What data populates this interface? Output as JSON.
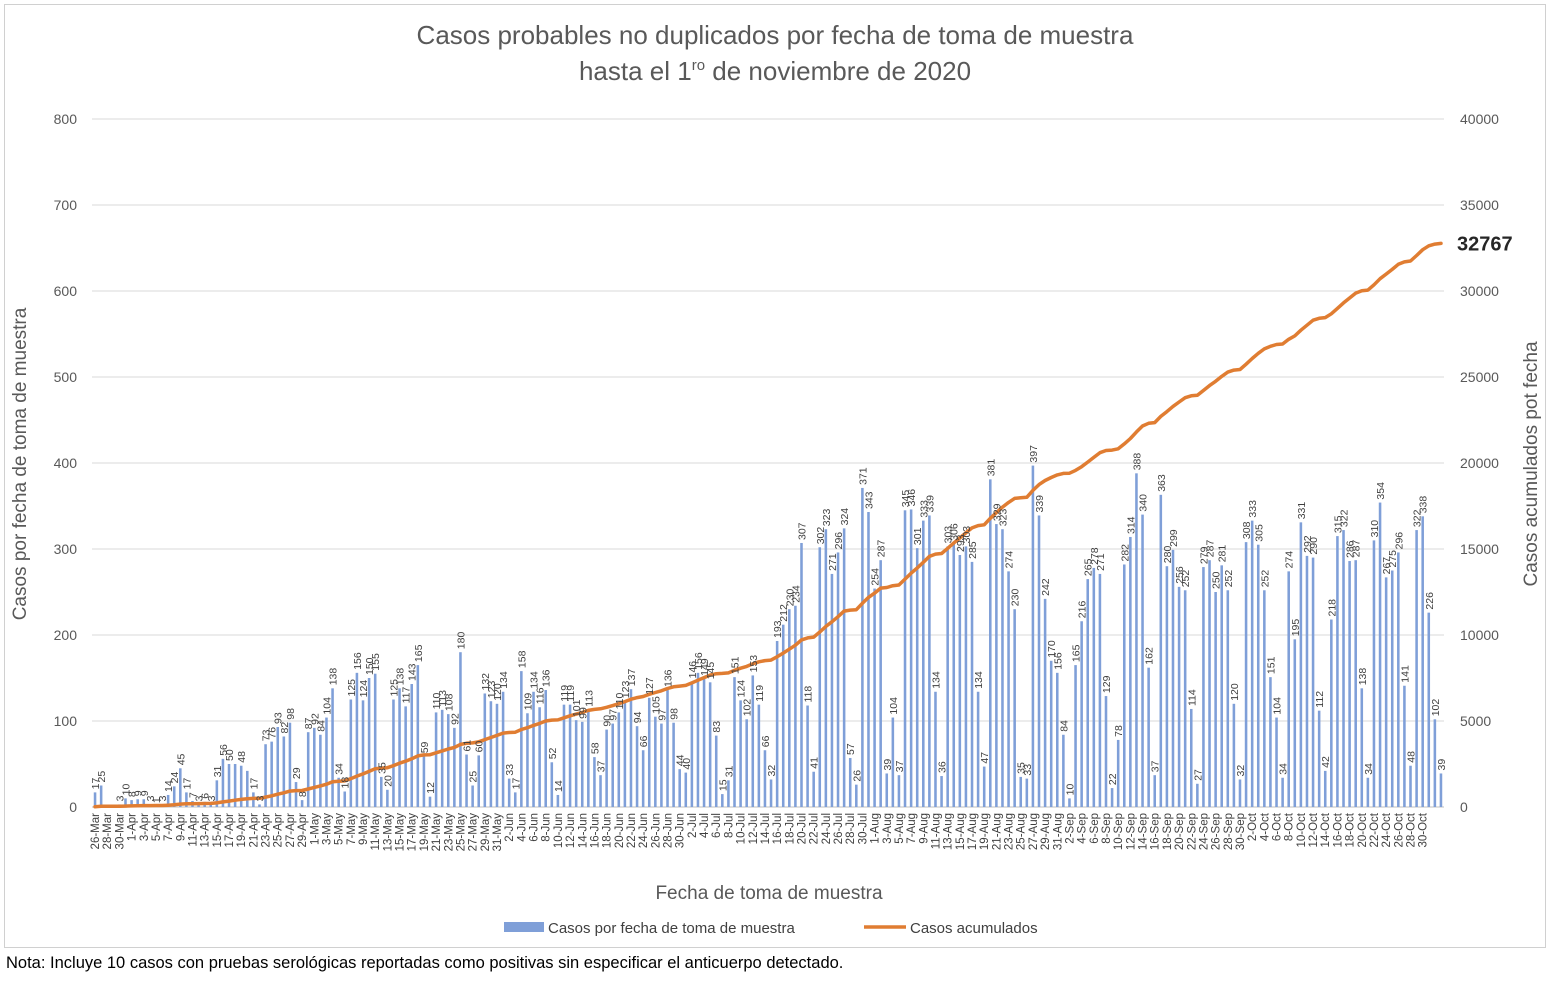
{
  "title": {
    "line1": "Casos probables no duplicados por fecha de toma de muestra",
    "line2_pre": "hasta el  1",
    "line2_sup": "ro",
    "line2_post": " de noviembre de 2020"
  },
  "footnote": "Nota: Incluye 10 casos con pruebas serológicas reportadas como positivas sin especificar el anticuerpo detectado.",
  "colors": {
    "bars": "#7f9fd8",
    "line": "#e07d32",
    "grid": "#d9d9d9"
  },
  "chart_data": {
    "type": "bar",
    "xlabel": "Fecha de toma de muestra",
    "ylabel": "Casos por fecha de toma de muestra",
    "y2label": "Casos acumulados pot fecha",
    "ylim": [
      0,
      800
    ],
    "y2lim": [
      0,
      40000
    ],
    "yticks": [
      0,
      100,
      200,
      300,
      400,
      500,
      600,
      700,
      800
    ],
    "y2ticks": [
      0,
      5000,
      10000,
      15000,
      20000,
      25000,
      30000,
      35000,
      40000
    ],
    "grid": true,
    "legend_position": "bottom",
    "start_date": "2020-03-26",
    "x_tick_labels": [
      "26-Mar",
      "28-Mar",
      "30-Mar",
      "1-Apr",
      "3-Apr",
      "5-Apr",
      "7-Apr",
      "9-Apr",
      "11-Apr",
      "13-Apr",
      "15-Apr",
      "17-Apr",
      "19-Apr",
      "21-Apr",
      "23-Apr",
      "25-Apr",
      "27-Apr",
      "29-Apr",
      "1-May",
      "3-May",
      "5-May",
      "7-May",
      "9-May",
      "11-May",
      "13-May",
      "15-May",
      "17-May",
      "19-May",
      "21-May",
      "23-May",
      "25-May",
      "27-May",
      "29-May",
      "31-May",
      "2-Jun",
      "4-Jun",
      "6-Jun",
      "8-Jun",
      "10-Jun",
      "12-Jun",
      "14-Jun",
      "16-Jun",
      "18-Jun",
      "20-Jun",
      "22-Jun",
      "24-Jun",
      "26-Jun",
      "28-Jun",
      "30-Jun",
      "2-Jul",
      "4-Jul",
      "6-Jul",
      "8-Jul",
      "10-Jul",
      "12-Jul",
      "14-Jul",
      "16-Jul",
      "18-Jul",
      "20-Jul",
      "22-Jul",
      "24-Jul",
      "26-Jul",
      "28-Jul",
      "30-Jul",
      "1-Aug",
      "3-Aug",
      "5-Aug",
      "7-Aug",
      "9-Aug",
      "11-Aug",
      "13-Aug",
      "15-Aug",
      "17-Aug",
      "19-Aug",
      "21-Aug",
      "23-Aug",
      "25-Aug",
      "27-Aug",
      "29-Aug",
      "31-Aug",
      "2-Sep",
      "4-Sep",
      "6-Sep",
      "8-Sep",
      "10-Sep",
      "12-Sep",
      "14-Sep",
      "16-Sep",
      "18-Sep",
      "20-Sep",
      "22-Sep",
      "24-Sep",
      "26-Sep",
      "28-Sep",
      "30-Sep",
      "2-Oct",
      "4-Oct",
      "6-Oct",
      "8-Oct",
      "10-Oct",
      "12-Oct",
      "14-Oct",
      "16-Oct",
      "18-Oct",
      "20-Oct",
      "22-Oct",
      "24-Oct",
      "26-Oct",
      "28-Oct",
      "30-Oct"
    ],
    "series": [
      {
        "name": "Casos por fecha de toma de muestra",
        "type": "bar",
        "values": [
          17,
          25,
          0,
          0,
          3,
          10,
          8,
          9,
          9,
          3,
          1,
          3,
          14,
          24,
          45,
          17,
          7,
          3,
          6,
          3,
          31,
          56,
          50,
          50,
          48,
          42,
          17,
          3,
          73,
          76,
          93,
          82,
          98,
          29,
          8,
          87,
          92,
          84,
          104,
          138,
          34,
          18,
          125,
          156,
          124,
          150,
          155,
          35,
          20,
          125,
          138,
          117,
          143,
          165,
          59,
          12,
          110,
          113,
          108,
          92,
          180,
          61,
          25,
          60,
          132,
          123,
          120,
          134,
          33,
          17,
          158,
          109,
          134,
          116,
          136,
          52,
          14,
          119,
          119,
          101,
          99,
          113,
          58,
          37,
          90,
          97,
          110,
          123,
          137,
          94,
          66,
          127,
          105,
          97,
          136,
          98,
          44,
          40,
          146,
          156,
          149,
          145,
          83,
          15,
          31,
          151,
          124,
          102,
          153,
          119,
          66,
          32,
          193,
          212,
          230,
          234,
          307,
          118,
          41,
          302,
          323,
          271,
          296,
          324,
          57,
          26,
          371,
          343,
          254,
          287,
          39,
          104,
          37,
          345,
          346,
          301,
          333,
          339,
          134,
          36,
          303,
          306,
          293,
          303,
          285,
          134,
          47,
          381,
          329,
          323,
          274,
          230,
          35,
          33,
          397,
          339,
          242,
          170,
          156,
          84,
          10,
          165,
          216,
          265,
          278,
          271,
          129,
          22,
          78,
          282,
          314,
          388,
          340,
          162,
          37,
          363,
          280,
          299,
          256,
          252,
          114,
          27,
          279,
          287,
          250,
          281,
          252,
          120,
          32,
          308,
          333,
          305,
          252,
          151,
          104,
          34,
          274,
          195,
          331,
          292,
          290,
          112,
          42,
          218,
          315,
          322,
          286,
          287,
          138,
          34,
          310,
          354,
          267,
          275,
          296,
          141,
          48,
          322,
          338,
          226,
          102,
          39
        ],
        "labels": [
          17,
          25,
          null,
          null,
          3,
          10,
          8,
          9,
          9,
          3,
          1,
          3,
          14,
          24,
          45,
          17,
          7,
          3,
          6,
          3,
          31,
          56,
          50,
          null,
          48,
          null,
          17,
          3,
          73,
          76,
          93,
          82,
          98,
          29,
          8,
          87,
          92,
          84,
          104,
          138,
          34,
          18,
          125,
          156,
          124,
          150,
          155,
          35,
          20,
          125,
          138,
          117,
          143,
          165,
          59,
          12,
          110,
          113,
          108,
          92,
          180,
          61,
          25,
          60,
          132,
          123,
          120,
          134,
          33,
          17,
          158,
          109,
          134,
          116,
          136,
          52,
          14,
          119,
          119,
          101,
          99,
          113,
          58,
          37,
          90,
          97,
          110,
          123,
          137,
          94,
          66,
          127,
          105,
          97,
          136,
          98,
          44,
          40,
          146,
          156,
          149,
          145,
          83,
          15,
          31,
          151,
          124,
          102,
          153,
          119,
          66,
          32,
          193,
          212,
          230,
          234,
          307,
          118,
          41,
          302,
          323,
          271,
          296,
          324,
          57,
          26,
          371,
          343,
          254,
          287,
          39,
          104,
          37,
          345,
          346,
          301,
          333,
          339,
          134,
          36,
          303,
          306,
          293,
          303,
          285,
          134,
          47,
          381,
          329,
          323,
          274,
          230,
          35,
          33,
          397,
          339,
          242,
          170,
          156,
          84,
          10,
          165,
          216,
          265,
          278,
          271,
          129,
          22,
          78,
          282,
          314,
          388,
          340,
          162,
          37,
          363,
          280,
          299,
          256,
          252,
          114,
          27,
          279,
          287,
          250,
          281,
          252,
          120,
          32,
          308,
          333,
          305,
          252,
          151,
          104,
          34,
          274,
          195,
          331,
          292,
          290,
          112,
          42,
          218,
          315,
          322,
          286,
          287,
          138,
          34,
          310,
          354,
          267,
          275,
          296,
          141,
          48,
          322,
          338,
          226,
          102,
          39
        ]
      },
      {
        "name": "Casos acumulados",
        "type": "line",
        "axis": "right",
        "final_value": 32767
      }
    ]
  }
}
